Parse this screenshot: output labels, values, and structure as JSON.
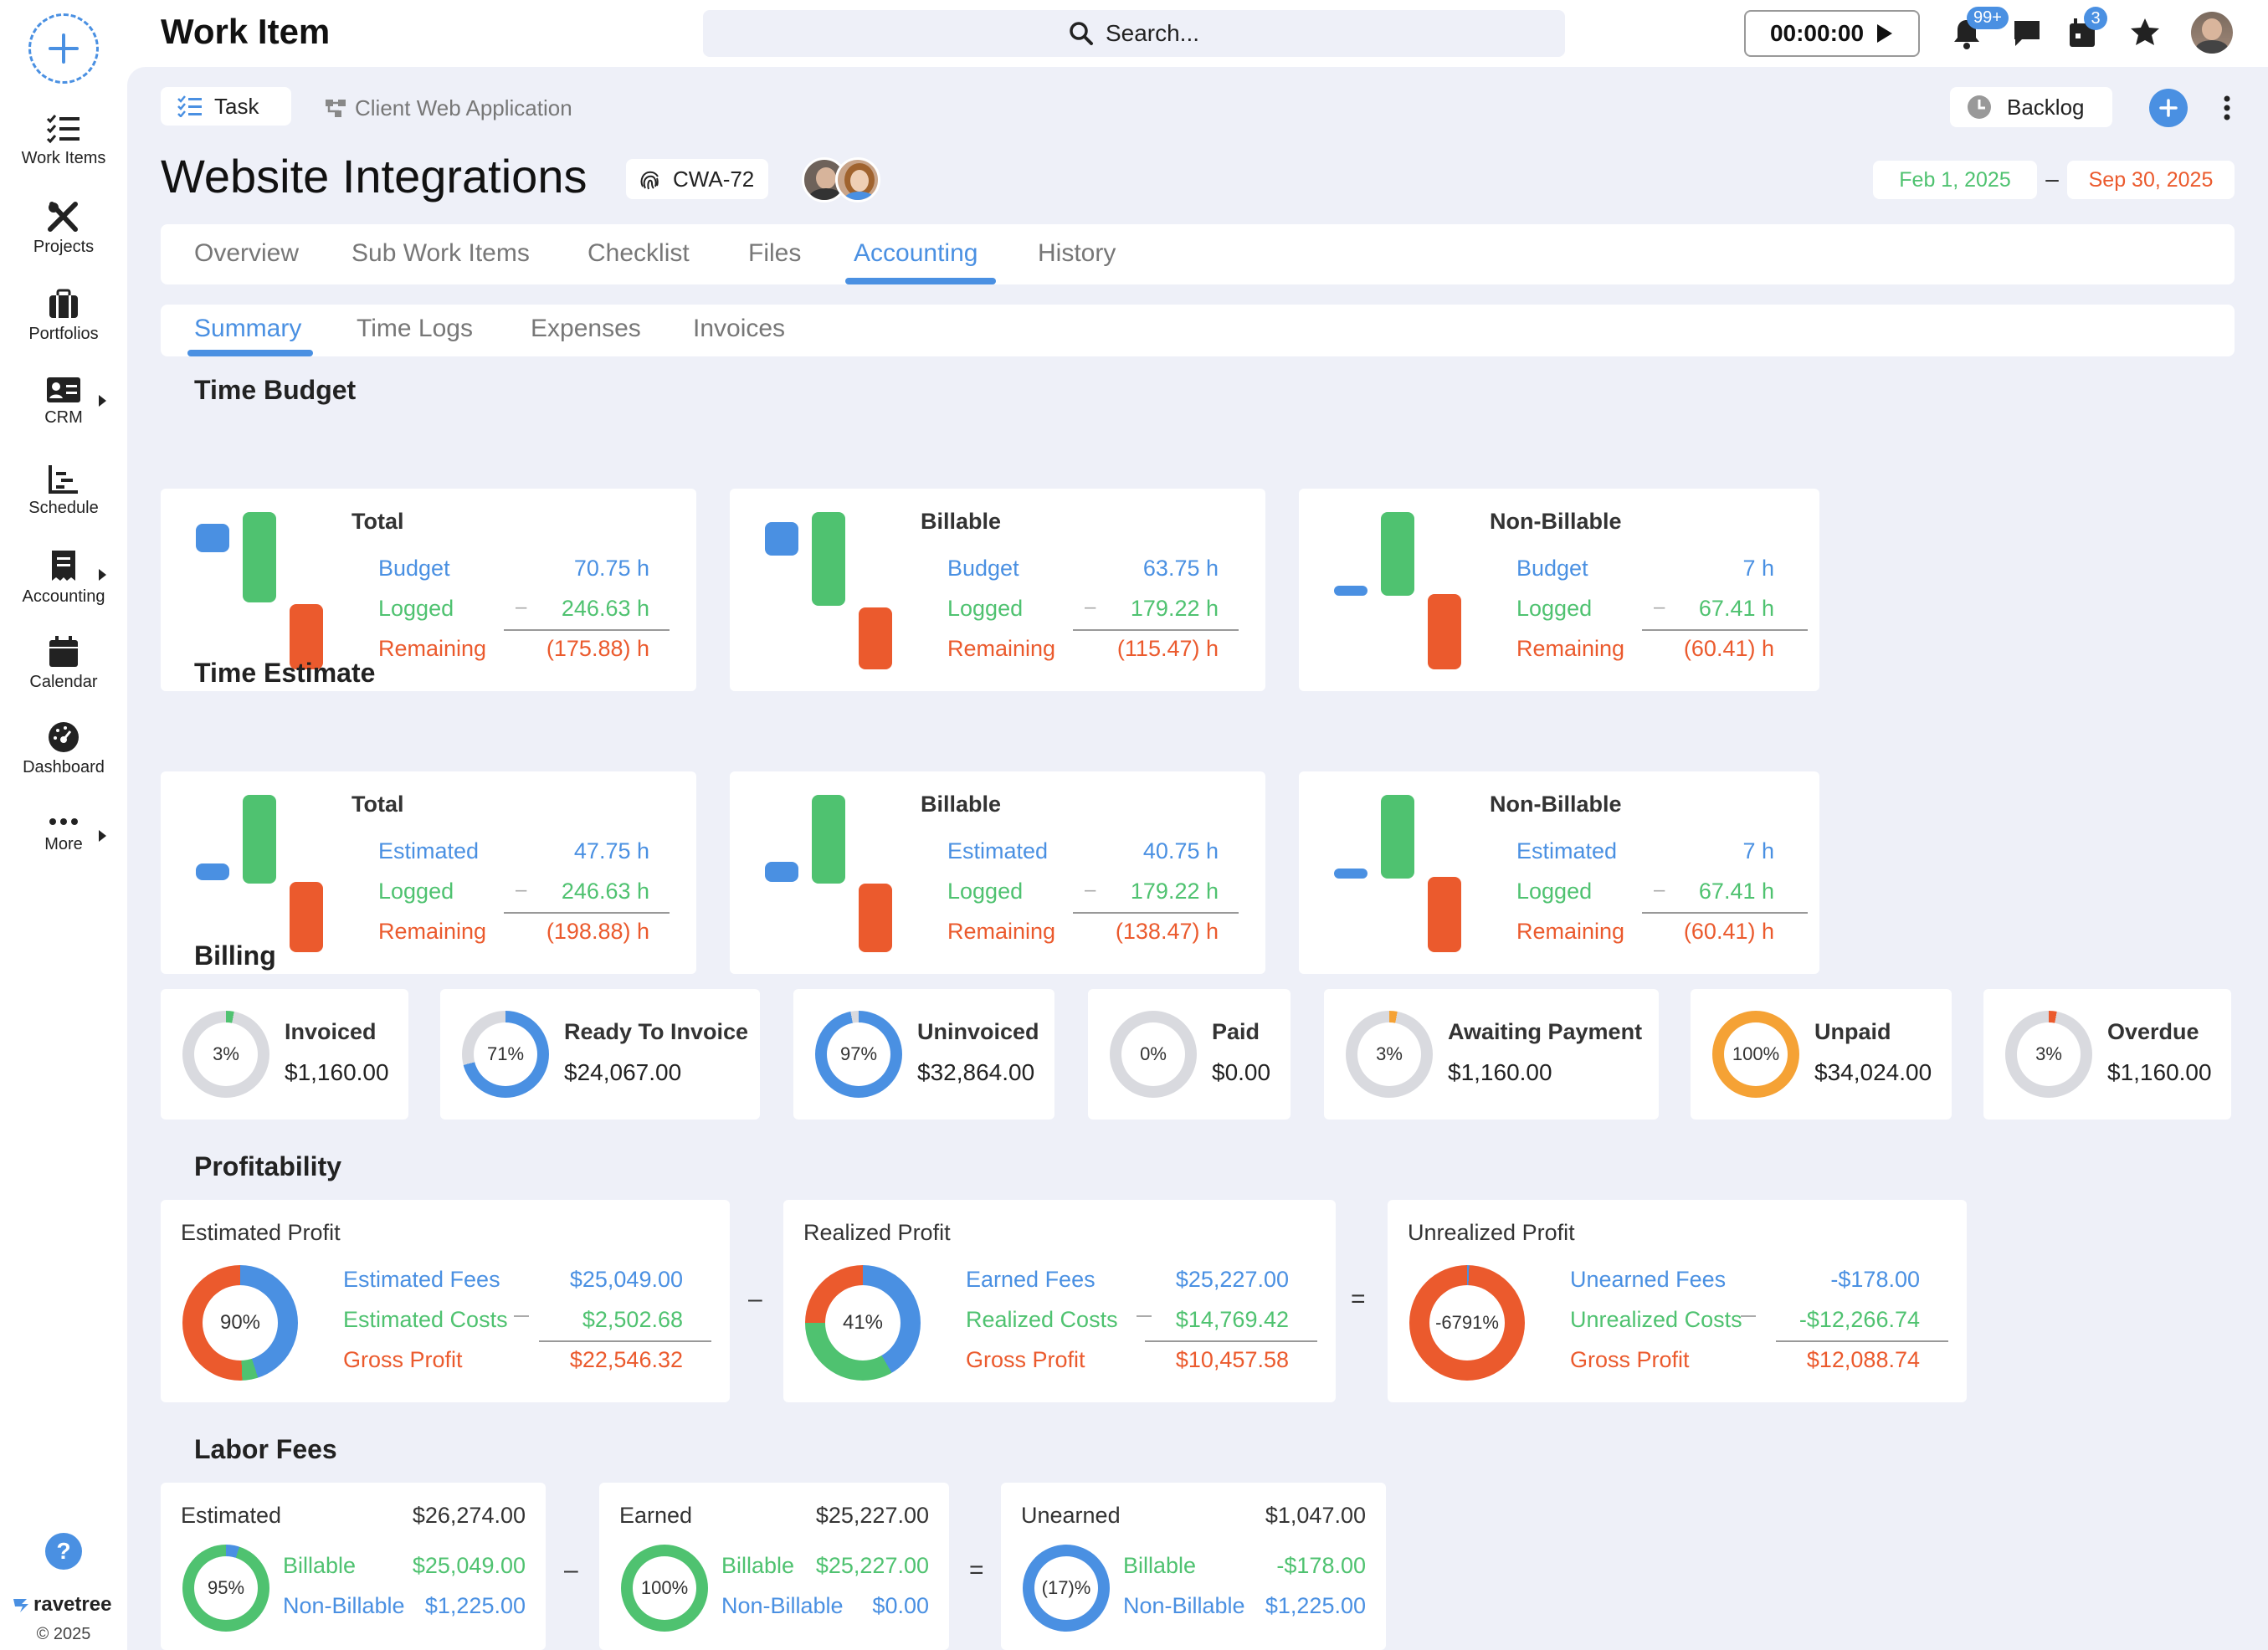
{
  "app": {
    "title": "Work Item",
    "search_placeholder": "Search...",
    "timer": "00:00:00",
    "notifications_badge": "99+",
    "calendar_badge": "3",
    "brand": "ravetree",
    "copyright": "© 2025"
  },
  "sidebar": {
    "items": [
      {
        "label": "Work Items",
        "icon": "list-check-icon"
      },
      {
        "label": "Projects",
        "icon": "tools-icon"
      },
      {
        "label": "Portfolios",
        "icon": "briefcase-icon"
      },
      {
        "label": "CRM",
        "icon": "contact-card-icon"
      },
      {
        "label": "Schedule",
        "icon": "schedule-chart-icon"
      },
      {
        "label": "Accounting",
        "icon": "receipt-icon"
      },
      {
        "label": "Calendar",
        "icon": "calendar-icon"
      },
      {
        "label": "Dashboard",
        "icon": "gauge-icon"
      },
      {
        "label": "More",
        "icon": "more-dots-icon"
      }
    ]
  },
  "header": {
    "type": "Task",
    "project": "Client Web Application",
    "status": "Backlog",
    "title": "Website Integrations",
    "id": "CWA-72",
    "start_date": "Feb 1, 2025",
    "end_date": "Sep 30, 2025",
    "date_sep": "–"
  },
  "tabs": [
    "Overview",
    "Sub Work Items",
    "Checklist",
    "Files",
    "Accounting",
    "History"
  ],
  "active_tab": "Accounting",
  "subtabs": [
    "Summary",
    "Time Logs",
    "Expenses",
    "Invoices"
  ],
  "active_subtab": "Summary",
  "time_budget": {
    "title": "Time Budget",
    "cards": [
      {
        "title": "Total",
        "rows": [
          [
            "Budget",
            "70.75 h"
          ],
          [
            "Logged",
            "246.63 h"
          ],
          [
            "Remaining",
            "(175.88) h"
          ]
        ],
        "minus": "–"
      },
      {
        "title": "Billable",
        "rows": [
          [
            "Budget",
            "63.75 h"
          ],
          [
            "Logged",
            "179.22 h"
          ],
          [
            "Remaining",
            "(115.47) h"
          ]
        ],
        "minus": "–"
      },
      {
        "title": "Non-Billable",
        "rows": [
          [
            "Budget",
            "7 h"
          ],
          [
            "Logged",
            "67.41 h"
          ],
          [
            "Remaining",
            "(60.41) h"
          ]
        ],
        "minus": "–"
      }
    ]
  },
  "time_estimate": {
    "title": "Time Estimate",
    "cards": [
      {
        "title": "Total",
        "rows": [
          [
            "Estimated",
            "47.75 h"
          ],
          [
            "Logged",
            "246.63 h"
          ],
          [
            "Remaining",
            "(198.88) h"
          ]
        ],
        "minus": "–"
      },
      {
        "title": "Billable",
        "rows": [
          [
            "Estimated",
            "40.75 h"
          ],
          [
            "Logged",
            "179.22 h"
          ],
          [
            "Remaining",
            "(138.47) h"
          ]
        ],
        "minus": "–"
      },
      {
        "title": "Non-Billable",
        "rows": [
          [
            "Estimated",
            "7 h"
          ],
          [
            "Logged",
            "67.41 h"
          ],
          [
            "Remaining",
            "(60.41) h"
          ]
        ],
        "minus": "–"
      }
    ]
  },
  "billing": {
    "title": "Billing",
    "items": [
      {
        "label": "Invoiced",
        "amount": "$1,160.00",
        "pct": "3%",
        "value": 3,
        "color": "#4fc270"
      },
      {
        "label": "Ready To Invoice",
        "amount": "$24,067.00",
        "pct": "71%",
        "value": 71,
        "color": "#4a90e2"
      },
      {
        "label": "Uninvoiced",
        "amount": "$32,864.00",
        "pct": "97%",
        "value": 97,
        "color": "#4a90e2"
      },
      {
        "label": "Paid",
        "amount": "$0.00",
        "pct": "0%",
        "value": 0,
        "color": "#4fc270"
      },
      {
        "label": "Awaiting Payment",
        "amount": "$1,160.00",
        "pct": "3%",
        "value": 3,
        "color": "#f5a235"
      },
      {
        "label": "Unpaid",
        "amount": "$34,024.00",
        "pct": "100%",
        "value": 100,
        "color": "#f5a235"
      },
      {
        "label": "Overdue",
        "amount": "$1,160.00",
        "pct": "3%",
        "value": 3,
        "color": "#eb5a2d"
      }
    ]
  },
  "profitability": {
    "title": "Profitability",
    "op1": "–",
    "op2": "=",
    "cards": [
      {
        "title": "Estimated Profit",
        "pct": "90%",
        "rows": [
          [
            "Estimated Fees",
            "$25,049.00"
          ],
          [
            "Estimated Costs",
            "$2,502.68"
          ],
          [
            "Gross Profit",
            "$22,546.32"
          ]
        ]
      },
      {
        "title": "Realized Profit",
        "pct": "41%",
        "rows": [
          [
            "Earned Fees",
            "$25,227.00"
          ],
          [
            "Realized Costs",
            "$14,769.42"
          ],
          [
            "Gross Profit",
            "$10,457.58"
          ]
        ]
      },
      {
        "title": "Unrealized Profit",
        "pct": "-6791%",
        "rows": [
          [
            "Unearned Fees",
            "-$178.00"
          ],
          [
            "Unrealized Costs",
            "-$12,266.74"
          ],
          [
            "Gross Profit",
            "$12,088.74"
          ]
        ]
      }
    ]
  },
  "labor_fees": {
    "title": "Labor Fees",
    "op1": "–",
    "op2": "=",
    "cards": [
      {
        "title": "Estimated",
        "total": "$26,274.00",
        "pct": "95%",
        "rows": [
          [
            "Billable",
            "$25,049.00"
          ],
          [
            "Non-Billable",
            "$1,225.00"
          ]
        ]
      },
      {
        "title": "Earned",
        "total": "$25,227.00",
        "pct": "100%",
        "rows": [
          [
            "Billable",
            "$25,227.00"
          ],
          [
            "Non-Billable",
            "$0.00"
          ]
        ]
      },
      {
        "title": "Unearned",
        "total": "$1,047.00",
        "pct": "(17)%",
        "rows": [
          [
            "Billable",
            "-$178.00"
          ],
          [
            "Non-Billable",
            "$1,225.00"
          ]
        ]
      }
    ]
  },
  "colors": {
    "blue": "#4a90e2",
    "green": "#4fc270",
    "red": "#eb5a2d",
    "orange": "#f5a235",
    "gray": "#d9dadf"
  }
}
